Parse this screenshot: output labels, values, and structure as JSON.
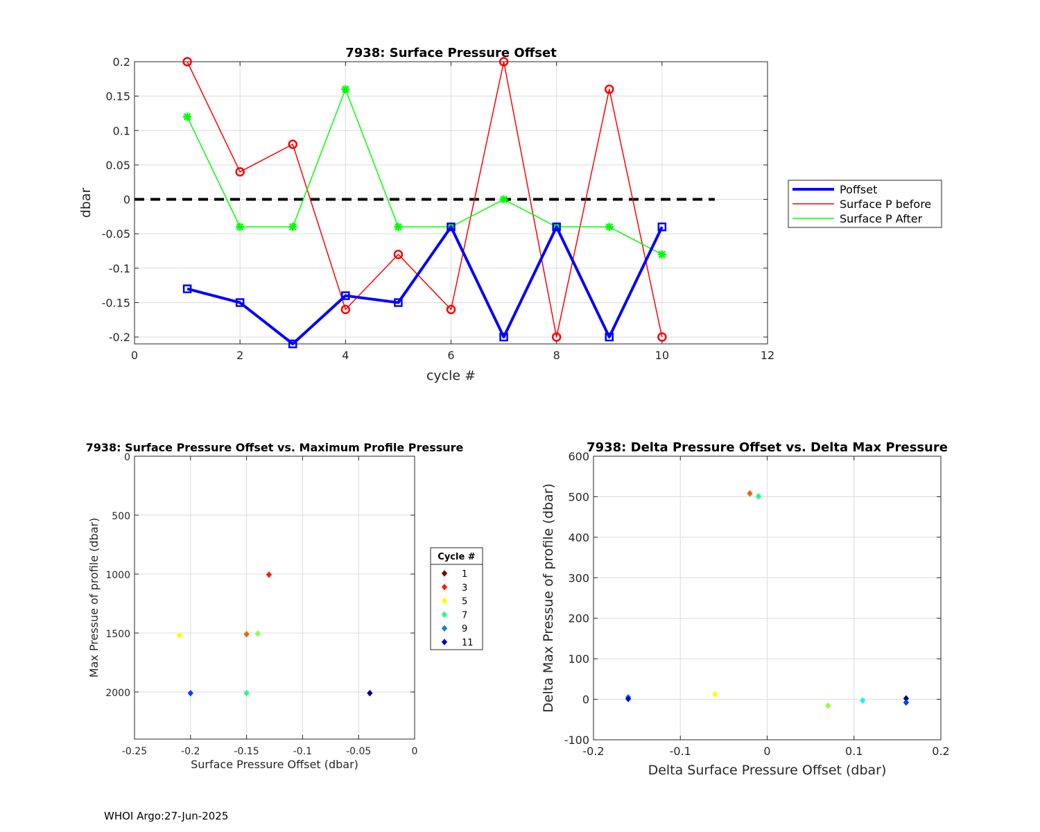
{
  "footer": "WHOI Argo:27-Jun-2025",
  "chart_data": [
    {
      "id": "top",
      "type": "line",
      "title": "7938: Surface Pressure Offset",
      "xlabel": "cycle #",
      "ylabel": "dbar",
      "xlim": [
        0,
        12
      ],
      "ylim": [
        -0.21,
        0.2
      ],
      "xticks": [
        0,
        2,
        4,
        6,
        8,
        10,
        12
      ],
      "yticks": [
        -0.2,
        -0.15,
        -0.1,
        -0.05,
        0,
        0.05,
        0.1,
        0.15,
        0.2
      ],
      "ytick_labels": [
        "-0.2",
        "-0.15",
        "-0.1",
        "-0.05",
        "0",
        "0.05",
        "0.1",
        "0.15",
        "0.2"
      ],
      "grid": true,
      "legend_position": "outside-right",
      "zero_line": {
        "x": [
          0,
          11
        ],
        "y": 0,
        "color": "#000000",
        "style": "dashed"
      },
      "series": [
        {
          "name": "Poffset",
          "color": "#0000ff",
          "marker": "square",
          "width": 4,
          "x": [
            1,
            2,
            3,
            4,
            5,
            6,
            7,
            8,
            9,
            10
          ],
          "y": [
            -0.13,
            -0.15,
            -0.21,
            -0.14,
            -0.15,
            -0.04,
            -0.2,
            -0.04,
            -0.2,
            -0.04
          ]
        },
        {
          "name": "Surface P before",
          "color": "#ff0000",
          "marker": "circle",
          "width": 1.5,
          "x": [
            1,
            2,
            3,
            4,
            5,
            6,
            7,
            8,
            9,
            10
          ],
          "y": [
            0.2,
            0.04,
            0.08,
            -0.16,
            -0.08,
            -0.16,
            0.2,
            -0.2,
            0.16,
            -0.2
          ]
        },
        {
          "name": "Surface P After",
          "color": "#00ff00",
          "marker": "star",
          "width": 1.5,
          "x": [
            1,
            2,
            3,
            4,
            5,
            6,
            7,
            8,
            9,
            10
          ],
          "y": [
            0.12,
            -0.04,
            -0.04,
            0.16,
            -0.04,
            -0.04,
            0,
            -0.04,
            -0.04,
            -0.08
          ]
        }
      ]
    },
    {
      "id": "bl",
      "type": "scatter",
      "title": "7938: Surface Pressure Offset vs. Maximum Profile Pressure",
      "xlabel": "Surface Pressure Offset (dbar)",
      "ylabel": "Max Pressue of profile (dbar)",
      "xlim": [
        -0.25,
        0
      ],
      "ylim": [
        0,
        2400
      ],
      "y_reversed": true,
      "xticks": [
        -0.25,
        -0.2,
        -0.15,
        -0.1,
        -0.05,
        0
      ],
      "xtick_labels": [
        "-0.25",
        "-0.2",
        "-0.15",
        "-0.1",
        "-0.05",
        "0"
      ],
      "yticks": [
        0,
        500,
        1000,
        1500,
        2000
      ],
      "grid": true,
      "legend_title": "Cycle #",
      "legend": [
        {
          "label": "1",
          "color": "#800000"
        },
        {
          "label": "3",
          "color": "#ff2000"
        },
        {
          "label": "5",
          "color": "#ffff00"
        },
        {
          "label": "7",
          "color": "#20ff80"
        },
        {
          "label": "9",
          "color": "#0080ff"
        },
        {
          "label": "11",
          "color": "#0000e0"
        }
      ],
      "points": [
        {
          "x": -0.13,
          "y": 1005,
          "color": "#ff2000"
        },
        {
          "x": -0.15,
          "y": 1510,
          "color": "#ff6000"
        },
        {
          "x": -0.21,
          "y": 1520,
          "color": "#ffff00"
        },
        {
          "x": -0.14,
          "y": 1505,
          "color": "#90ff40"
        },
        {
          "x": -0.15,
          "y": 2010,
          "color": "#20ff80"
        },
        {
          "x": -0.2,
          "y": 2010,
          "color": "#0040ff"
        },
        {
          "x": -0.04,
          "y": 2010,
          "color": "#000080"
        }
      ]
    },
    {
      "id": "br",
      "type": "scatter",
      "title": "7938: Delta Pressure Offset vs. Delta Max Pressure",
      "xlabel": "Delta Surface Pressure Offset (dbar)",
      "ylabel": "Delta Max Pressue of profile (dbar)",
      "xlim": [
        -0.2,
        0.2
      ],
      "ylim": [
        -100,
        600
      ],
      "xticks": [
        -0.2,
        -0.1,
        0,
        0.1,
        0.2
      ],
      "xtick_labels": [
        "-0.2",
        "-0.1",
        "0",
        "0.1",
        "0.2"
      ],
      "yticks": [
        -100,
        0,
        100,
        200,
        300,
        400,
        500,
        600
      ],
      "grid": true,
      "points": [
        {
          "x": -0.02,
          "y": 508,
          "color": "#ff6000"
        },
        {
          "x": -0.01,
          "y": 501,
          "color": "#20ff80"
        },
        {
          "x": -0.06,
          "y": 12,
          "color": "#ffff00"
        },
        {
          "x": -0.16,
          "y": 5,
          "color": "#0080ff"
        },
        {
          "x": -0.16,
          "y": 1,
          "color": "#0000e0"
        },
        {
          "x": 0.07,
          "y": -16,
          "color": "#90ff40"
        },
        {
          "x": 0.11,
          "y": -3,
          "color": "#00ffff"
        },
        {
          "x": 0.16,
          "y": 2,
          "color": "#000080"
        },
        {
          "x": 0.16,
          "y": -8,
          "color": "#0040ff"
        }
      ]
    }
  ]
}
